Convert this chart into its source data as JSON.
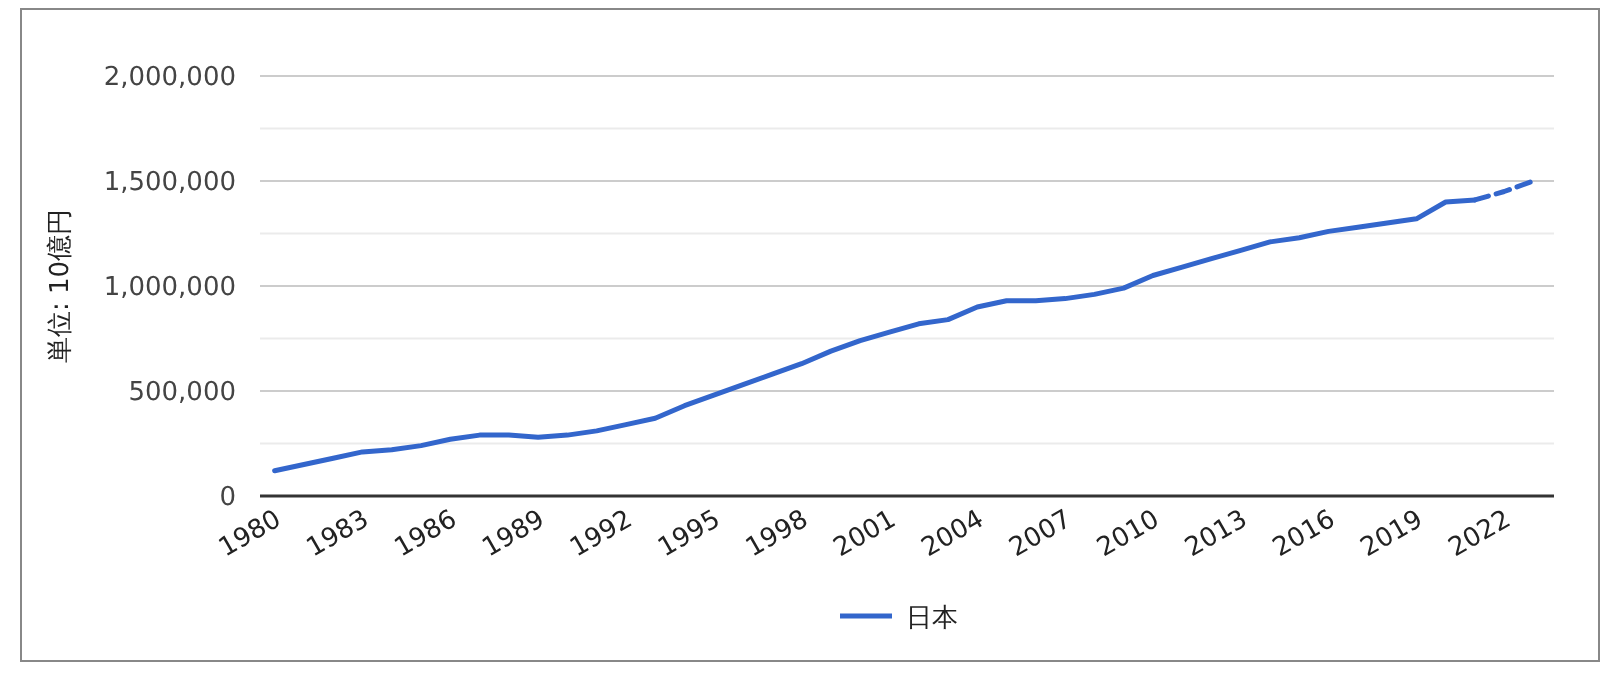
{
  "chart_data": {
    "type": "line",
    "ylabel": "単位: 10億円",
    "xlim": [
      1979.5,
      2023.7
    ],
    "xticks": [
      1980,
      1983,
      1986,
      1989,
      1992,
      1995,
      1998,
      2001,
      2004,
      2007,
      2010,
      2013,
      2016,
      2019,
      2022
    ],
    "ylim": [
      0,
      2000000
    ],
    "yticks": [
      {
        "value": 0,
        "label": "0"
      },
      {
        "value": 250000,
        "label": null
      },
      {
        "value": 500000,
        "label": "500,000"
      },
      {
        "value": 750000,
        "label": null
      },
      {
        "value": 1000000,
        "label": "1,000,000"
      },
      {
        "value": 1250000,
        "label": null
      },
      {
        "value": 1500000,
        "label": "1,500,000"
      },
      {
        "value": 1750000,
        "label": null
      },
      {
        "value": 2000000,
        "label": "2,000,000"
      }
    ],
    "grid": "y",
    "legend": "bottom",
    "line_style": "solid",
    "series": [
      {
        "name": "日本",
        "color": "#3366cc",
        "x": [
          1980,
          1981,
          1982,
          1983,
          1984,
          1985,
          1986,
          1987,
          1988,
          1989,
          1990,
          1991,
          1992,
          1993,
          1994,
          1995,
          1996,
          1997,
          1998,
          1999,
          2000,
          2001,
          2002,
          2003,
          2004,
          2005,
          2006,
          2007,
          2008,
          2009,
          2010,
          2011,
          2012,
          2013,
          2014,
          2015,
          2016,
          2017,
          2018,
          2019,
          2020,
          2021
        ],
        "values": [
          120000,
          150000,
          180000,
          210000,
          220000,
          240000,
          270000,
          290000,
          290000,
          280000,
          290000,
          310000,
          340000,
          370000,
          430000,
          480000,
          530000,
          580000,
          630000,
          690000,
          740000,
          780000,
          820000,
          840000,
          900000,
          930000,
          930000,
          940000,
          960000,
          990000,
          1050000,
          1090000,
          1130000,
          1170000,
          1210000,
          1230000,
          1260000,
          1280000,
          1300000,
          1320000,
          1400000,
          1410000
        ]
      },
      {
        "color": "#3366cc",
        "line_style": "dashed",
        "x": [
          2021,
          2022,
          2023
        ],
        "values": [
          1410000,
          1450000,
          1500000
        ]
      }
    ]
  }
}
